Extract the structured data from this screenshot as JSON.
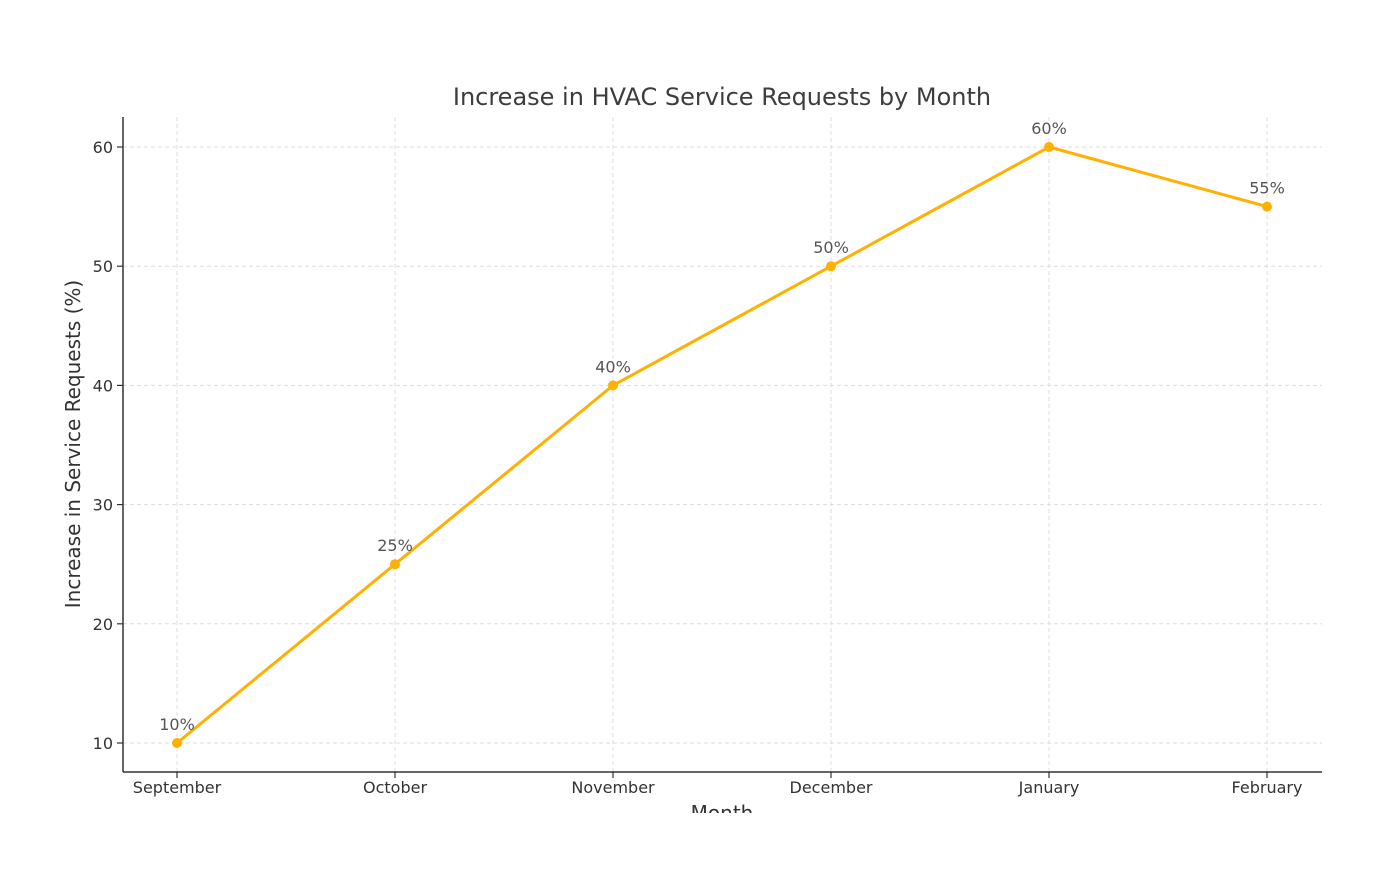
{
  "chart_data": {
    "type": "line",
    "title": "Increase in HVAC Service Requests by Month",
    "xlabel": "Month",
    "ylabel": "Increase in Service Requests (%)",
    "categories": [
      "September",
      "October",
      "November",
      "December",
      "January",
      "February"
    ],
    "series": [
      {
        "values": [
          10,
          25,
          40,
          50,
          60,
          55
        ],
        "color": "#FFB000",
        "marker": "circle"
      }
    ],
    "data_labels": [
      "10%",
      "25%",
      "40%",
      "50%",
      "60%",
      "55%"
    ],
    "yticks": [
      10,
      20,
      30,
      40,
      50,
      60
    ],
    "ylim": [
      7.5,
      62.5
    ],
    "grid": true,
    "legend": "none"
  }
}
